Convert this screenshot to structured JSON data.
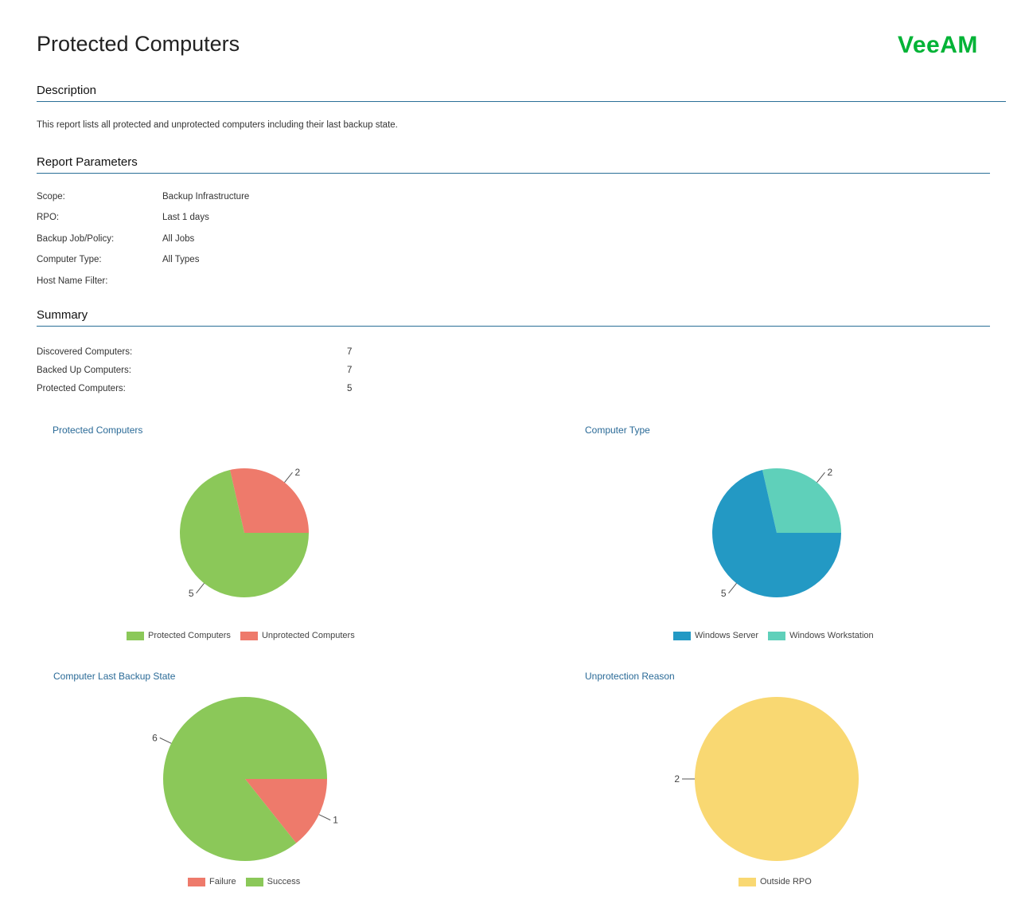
{
  "report": {
    "title": "Protected Computers",
    "logo_text": "VeeAM"
  },
  "description": {
    "heading": "Description",
    "text": "This report lists all protected and unprotected computers including their last backup state."
  },
  "parameters": {
    "heading": "Report Parameters",
    "items": [
      {
        "label": "Scope:",
        "value": "Backup Infrastructure"
      },
      {
        "label": "RPO:",
        "value": "Last 1 days"
      },
      {
        "label": "Backup Job/Policy:",
        "value": "All Jobs"
      },
      {
        "label": "Computer Type:",
        "value": "All Types"
      },
      {
        "label": "Host Name Filter:",
        "value": ""
      }
    ]
  },
  "summary": {
    "heading": "Summary",
    "items": [
      {
        "label": "Discovered Computers:",
        "value": "7"
      },
      {
        "label": "Backed Up Computers:",
        "value": "7"
      },
      {
        "label": "Protected Computers:",
        "value": "5"
      }
    ]
  },
  "colors": {
    "accent": "#2a6f97",
    "chart_title": "#2a6a97",
    "logo": "#00b336"
  },
  "chart_data": [
    {
      "type": "pie",
      "title": "Protected Computers",
      "labels": [
        "Protected Computers",
        "Unprotected Computers"
      ],
      "values": [
        5,
        2
      ],
      "colors": [
        "#8bc859",
        "#ee7a6b"
      ],
      "legend": "bottom"
    },
    {
      "type": "pie",
      "title": "Computer Type",
      "labels": [
        "Windows Server",
        "Windows Workstation"
      ],
      "values": [
        5,
        2
      ],
      "colors": [
        "#2399c4",
        "#5fd0ba"
      ],
      "legend": "bottom"
    },
    {
      "type": "pie",
      "title": "Computer Last Backup State",
      "labels": [
        "Failure",
        "Success"
      ],
      "values": [
        1,
        6
      ],
      "colors": [
        "#ee7a6b",
        "#8bc859"
      ],
      "legend": "bottom"
    },
    {
      "type": "pie",
      "title": "Unprotection Reason",
      "labels": [
        "Outside RPO"
      ],
      "values": [
        2
      ],
      "colors": [
        "#f9d872"
      ],
      "legend": "bottom"
    }
  ]
}
